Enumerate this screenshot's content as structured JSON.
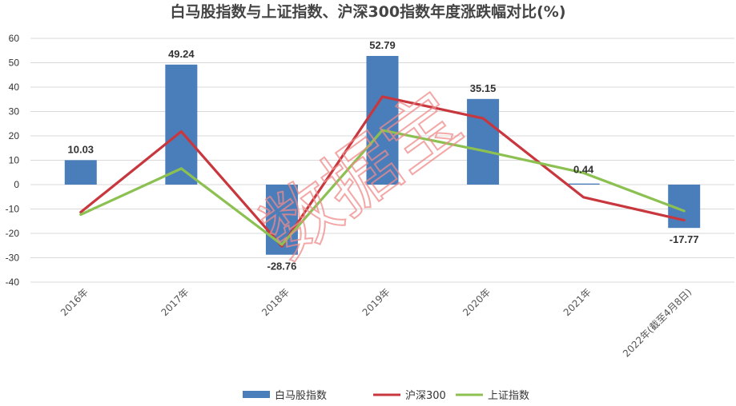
{
  "chart_data": {
    "type": "bar",
    "title": "白马股指数与上证指数、沪深300指数年度涨跌幅对比(%)",
    "categories": [
      "2016年",
      "2017年",
      "2018年",
      "2019年",
      "2020年",
      "2021年",
      "2022年(截至4月8日)"
    ],
    "ylim": [
      -40,
      60
    ],
    "yticks": [
      60,
      50,
      40,
      30,
      20,
      10,
      0,
      -10,
      -20,
      -30,
      -40
    ],
    "grid": true,
    "legend_position": "bottom",
    "series": [
      {
        "name": "白马股指数",
        "type": "bar",
        "color": "#4a7ebb",
        "values": [
          10.03,
          49.24,
          -28.76,
          52.79,
          35.15,
          0.44,
          -17.77
        ],
        "labels": [
          "10.03",
          "49.24",
          "-28.76",
          "52.79",
          "35.15",
          "0.44",
          "-17.77"
        ]
      },
      {
        "name": "沪深300",
        "type": "line",
        "color": "#c9373e",
        "values": [
          -11.3,
          21.8,
          -25.3,
          36.1,
          27.2,
          -5.2,
          -14.6
        ]
      },
      {
        "name": "上证指数",
        "type": "line",
        "color": "#8cc152",
        "values": [
          -12.3,
          6.6,
          -24.6,
          22.3,
          13.9,
          4.8,
          -10.8
        ]
      }
    ],
    "watermark": "数据宝"
  }
}
